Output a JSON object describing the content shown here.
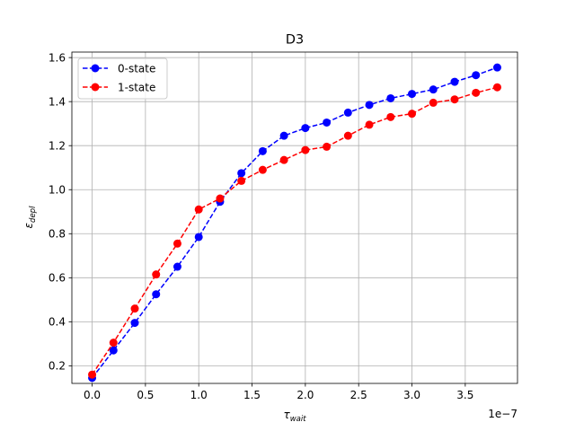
{
  "chart_data": {
    "type": "line",
    "title": "D3",
    "xlabel": "τ",
    "xlabel_sub": "wait",
    "ylabel": "ε",
    "ylabel_sub": "depl",
    "x_offset_label": "1e−7",
    "x": [
      0.0,
      0.2,
      0.4,
      0.6,
      0.8,
      1.0,
      1.2,
      1.4,
      1.6,
      1.8,
      2.0,
      2.2,
      2.4,
      2.6,
      2.8,
      3.0,
      3.2,
      3.4,
      3.6,
      3.8
    ],
    "x_ticks": [
      "0.0",
      "0.5",
      "1.0",
      "1.5",
      "2.0",
      "2.5",
      "3.0",
      "3.5"
    ],
    "y_ticks": [
      "0.2",
      "0.4",
      "0.6",
      "0.8",
      "1.0",
      "1.2",
      "1.4",
      "1.6"
    ],
    "xlim": [
      -0.19,
      3.99
    ],
    "ylim": [
      0.12,
      1.625
    ],
    "grid": true,
    "legend_position": "upper left",
    "series": [
      {
        "name": "0-state",
        "color": "#0000ff",
        "values": [
          0.145,
          0.27,
          0.395,
          0.525,
          0.65,
          0.785,
          0.945,
          1.075,
          1.175,
          1.245,
          1.28,
          1.305,
          1.35,
          1.385,
          1.415,
          1.435,
          1.455,
          1.49,
          1.52,
          1.555
        ]
      },
      {
        "name": "1-state",
        "color": "#ff0000",
        "values": [
          0.16,
          0.305,
          0.46,
          0.615,
          0.755,
          0.91,
          0.96,
          1.04,
          1.09,
          1.135,
          1.18,
          1.195,
          1.245,
          1.295,
          1.33,
          1.345,
          1.395,
          1.41,
          1.44,
          1.465
        ]
      }
    ]
  }
}
